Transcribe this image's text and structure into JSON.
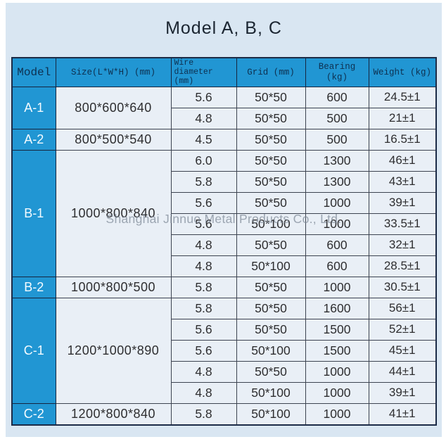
{
  "title": "Model A, B, C",
  "watermark": "Shanghai Jinnuo Metal Products Co., Ltd.",
  "colors": {
    "page_background": "#d9e6f2",
    "header_blue": "#2196d3",
    "cell_background": "#e9eff6",
    "border_dark": "#1c2b47",
    "model_label_text": "#ffffff",
    "header_text": "#0e3050",
    "data_text": "#2e2e30",
    "watermark_text": "#7d8896"
  },
  "table": {
    "headers": [
      "Model",
      "Size(L*W*H) (mm)",
      "Wire diameter (mm)",
      "Grid (mm)",
      "Bearing (kg)",
      "Weight (kg)"
    ],
    "groups": [
      {
        "model": "A-1",
        "size": "800*600*640",
        "rows": [
          [
            "5.6",
            "50*50",
            "600",
            "24.5±1"
          ],
          [
            "4.8",
            "50*50",
            "500",
            "21±1"
          ]
        ]
      },
      {
        "model": "A-2",
        "size": "800*500*540",
        "rows": [
          [
            "4.5",
            "50*50",
            "500",
            "16.5±1"
          ]
        ]
      },
      {
        "model": "B-1",
        "size": "1000*800*840",
        "rows": [
          [
            "6.0",
            "50*50",
            "1300",
            "46±1"
          ],
          [
            "5.8",
            "50*50",
            "1300",
            "43±1"
          ],
          [
            "5.6",
            "50*50",
            "1000",
            "39±1"
          ],
          [
            "5.6",
            "50*100",
            "1000",
            "33.5±1"
          ],
          [
            "4.8",
            "50*50",
            "600",
            "32±1"
          ],
          [
            "4.8",
            "50*100",
            "600",
            "28.5±1"
          ]
        ]
      },
      {
        "model": "B-2",
        "size": "1000*800*500",
        "rows": [
          [
            "5.8",
            "50*50",
            "1000",
            "30.5±1"
          ]
        ]
      },
      {
        "model": "C-1",
        "size": "1200*1000*890",
        "rows": [
          [
            "5.8",
            "50*50",
            "1600",
            "56±1"
          ],
          [
            "5.6",
            "50*50",
            "1500",
            "52±1"
          ],
          [
            "5.6",
            "50*100",
            "1500",
            "45±1"
          ],
          [
            "4.8",
            "50*50",
            "1000",
            "44±1"
          ],
          [
            "4.8",
            "50*100",
            "1000",
            "39±1"
          ]
        ]
      },
      {
        "model": "C-2",
        "size": "1200*800*840",
        "rows": [
          [
            "5.8",
            "50*100",
            "1000",
            "41±1"
          ]
        ]
      }
    ]
  }
}
